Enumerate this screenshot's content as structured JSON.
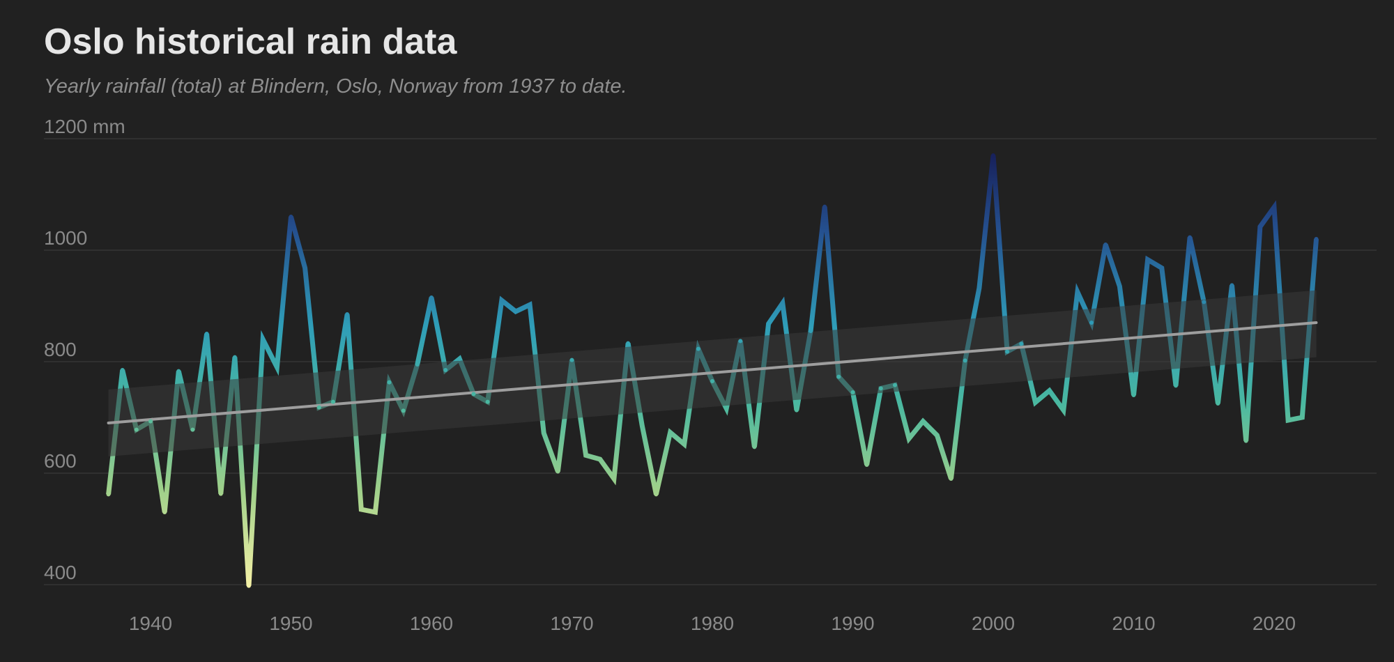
{
  "chart_data": {
    "type": "line",
    "title": "Oslo historical rain data",
    "subtitle": "Yearly rainfall (total) at Blindern, Oslo, Norway from 1937 to date.",
    "ylabel_unit": "mm",
    "ylim": [
      400,
      1200
    ],
    "xlim": [
      1934,
      2028
    ],
    "y_ticks": [
      400,
      600,
      800,
      1000,
      1200
    ],
    "y_tick_labels": [
      "400",
      "600",
      "800",
      "1000",
      "1200 mm"
    ],
    "x_ticks": [
      1940,
      1950,
      1960,
      1970,
      1980,
      1990,
      2000,
      2010,
      2020
    ],
    "x_tick_labels": [
      "1940",
      "1950",
      "1960",
      "1970",
      "1980",
      "1990",
      "2000",
      "2010",
      "2020"
    ],
    "grid": true,
    "series": [
      {
        "x": [
          1937,
          1938,
          1939,
          1940,
          1941,
          1942,
          1943,
          1944,
          1945,
          1946,
          1947,
          1948,
          1949,
          1950,
          1951,
          1952,
          1953,
          1954,
          1955,
          1956,
          1957,
          1958,
          1959,
          1960,
          1961,
          1962,
          1963,
          1964,
          1965,
          1966,
          1967,
          1968,
          1969,
          1970,
          1971,
          1972,
          1973,
          1974,
          1975,
          1976,
          1977,
          1978,
          1979,
          1980,
          1981,
          1982,
          1983,
          1984,
          1985,
          1986,
          1987,
          1988,
          1989,
          1990,
          1991,
          1992,
          1993,
          1994,
          1995,
          1996,
          1997,
          1998,
          1999,
          2000,
          2001,
          2002,
          2003,
          2004,
          2005,
          2006,
          2007,
          2008,
          2009,
          2010,
          2011,
          2012,
          2013,
          2014,
          2015,
          2016,
          2017,
          2018,
          2019,
          2020,
          2021,
          2022,
          2023
        ],
        "y": [
          562,
          785,
          678,
          693,
          530,
          783,
          678,
          850,
          563,
          808,
          398,
          840,
          790,
          1060,
          968,
          718,
          728,
          885,
          535,
          530,
          763,
          712,
          795,
          915,
          785,
          805,
          742,
          728,
          910,
          890,
          902,
          672,
          603,
          803,
          632,
          625,
          590,
          833,
          685,
          562,
          673,
          652,
          823,
          765,
          716,
          837,
          647,
          868,
          905,
          713,
          855,
          1078,
          773,
          745,
          615,
          752,
          758,
          662,
          693,
          668,
          590,
          802,
          932,
          1170,
          818,
          832,
          727,
          748,
          713,
          925,
          870,
          1010,
          935,
          740,
          983,
          968,
          757,
          1023,
          907,
          725,
          937,
          658,
          1042,
          1077,
          695,
          700,
          1020
        ],
        "color_scale": {
          "low": "#f3f0a6",
          "mid": "#34a3b8",
          "high": "#17205a",
          "domain": [
            400,
            800,
            1170
          ]
        },
        "line_width": 7
      }
    ],
    "trend": {
      "type": "linear",
      "x": [
        1937,
        2023
      ],
      "y": [
        690,
        870
      ],
      "band_lower": [
        630,
        808
      ],
      "band_upper": [
        750,
        928
      ],
      "color": "#9e9e9e",
      "band_color": "#3a3a3a"
    }
  }
}
